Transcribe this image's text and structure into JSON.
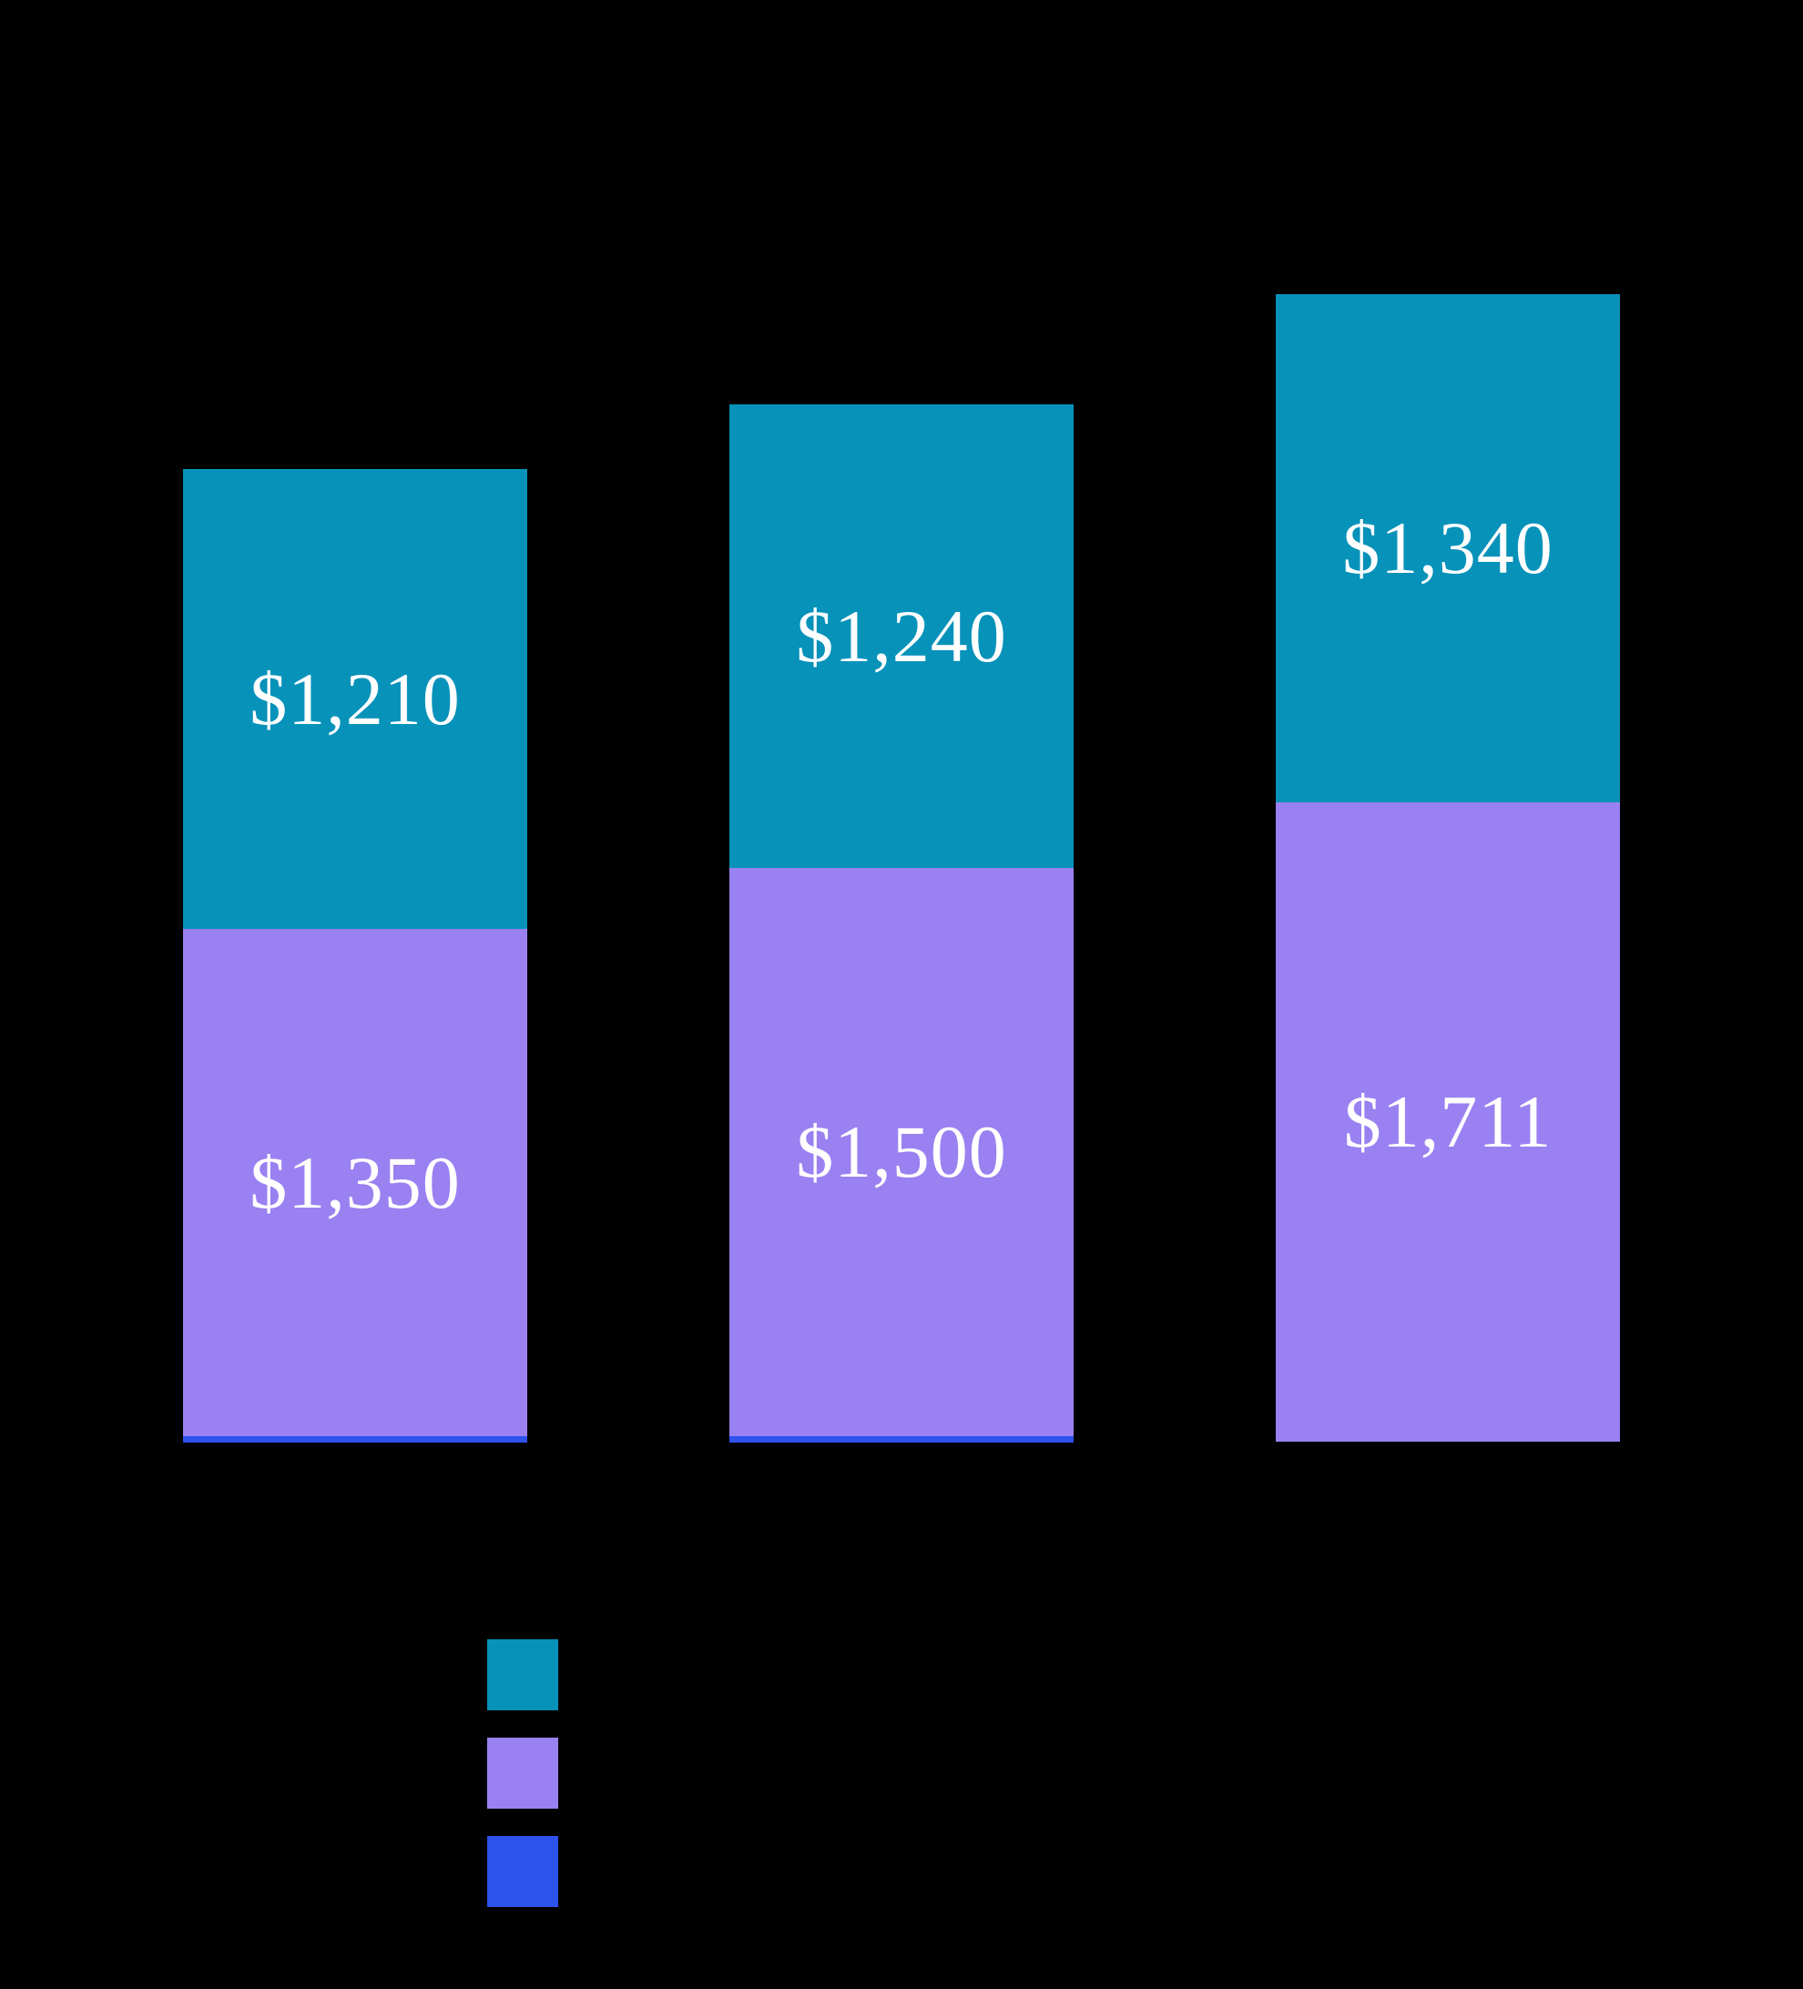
{
  "colors": {
    "background": "#000000",
    "teal_series": "#0792ba",
    "purple_series": "#9a81f1",
    "blue_series": "#2e52ec",
    "value_label_text": "#ffffff"
  },
  "chart_data": {
    "type": "bar",
    "stacked": true,
    "orientation": "vertical",
    "grid": false,
    "axes_visible": false,
    "categories": [
      "",
      "",
      ""
    ],
    "series": [
      {
        "stack_position": "top",
        "color": "#0792ba",
        "values": [
          1210,
          1240,
          1340
        ],
        "data_labels": [
          "$1,210",
          "$1,240",
          "$1,340"
        ]
      },
      {
        "stack_position": "middle",
        "color": "#9a81f1",
        "values": [
          1350,
          1500,
          1711
        ],
        "data_labels": [
          "$1,350",
          "$1,500",
          "$1,711"
        ]
      },
      {
        "stack_position": "bottom",
        "color": "#2e52ec",
        "values": [
          17,
          17,
          0
        ],
        "values_estimated_from_pixels": true,
        "data_labels": [
          "",
          "",
          ""
        ]
      }
    ],
    "legend": {
      "position": "below-chart-left",
      "entries": [
        {
          "swatch_color": "#0792ba",
          "label": ""
        },
        {
          "swatch_color": "#9a81f1",
          "label": ""
        },
        {
          "swatch_color": "#2e52ec",
          "label": ""
        }
      ]
    }
  }
}
